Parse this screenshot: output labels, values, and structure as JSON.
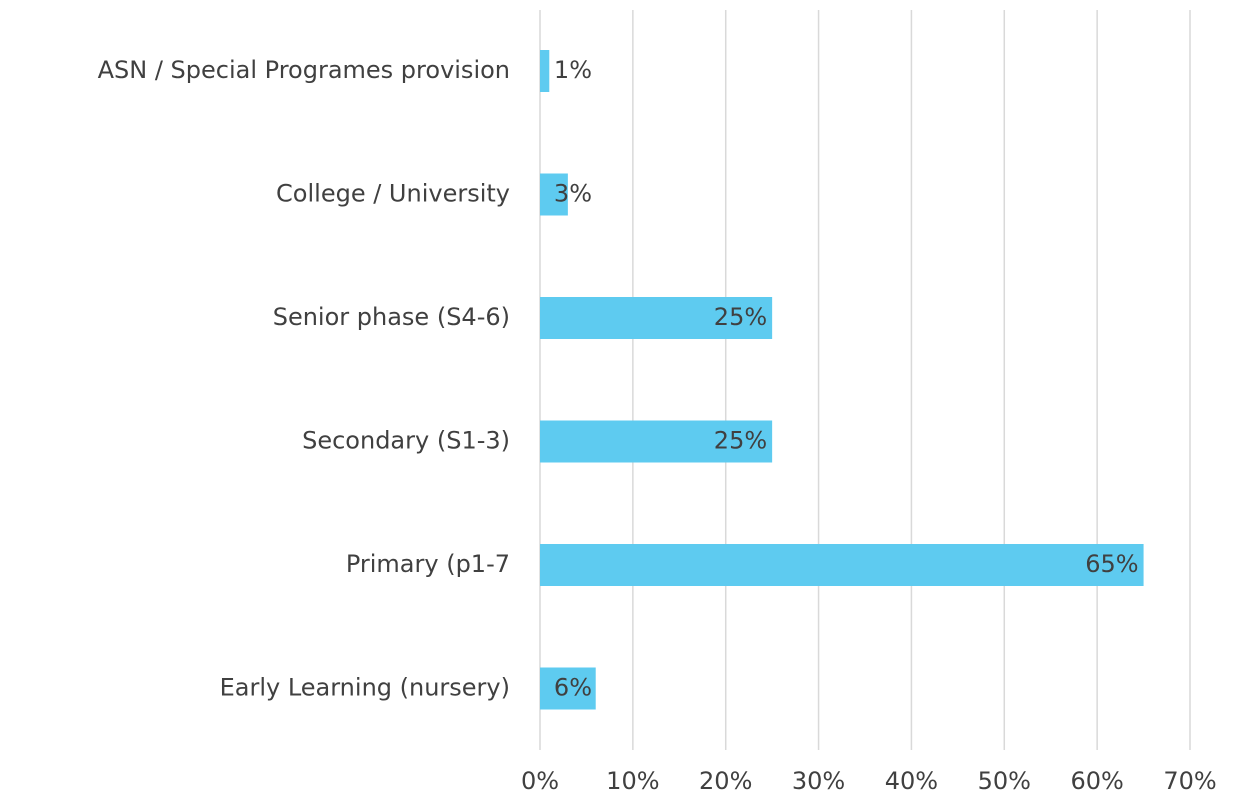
{
  "chart_data": {
    "type": "barh",
    "categories": [
      "ASN / Special Programes provision",
      "College / University",
      "Senior phase (S4-6)",
      "Secondary (S1-3)",
      "Primary (p1-7",
      "Early Learning (nursery)"
    ],
    "values": [
      1,
      3,
      25,
      25,
      65,
      6
    ],
    "value_labels": [
      "1%",
      "3%",
      "25%",
      "25%",
      "65%",
      "6%"
    ],
    "color": "#5ecbf0",
    "xlim": [
      0,
      70
    ],
    "xticks": [
      {
        "value": 0,
        "label": "0%"
      },
      {
        "value": 10,
        "label": "10%"
      },
      {
        "value": 20,
        "label": "20%"
      },
      {
        "value": 30,
        "label": "30%"
      },
      {
        "value": 40,
        "label": "40%"
      },
      {
        "value": 50,
        "label": "50%"
      },
      {
        "value": 60,
        "label": "60%"
      },
      {
        "value": 70,
        "label": "70%"
      }
    ],
    "grid": true
  }
}
